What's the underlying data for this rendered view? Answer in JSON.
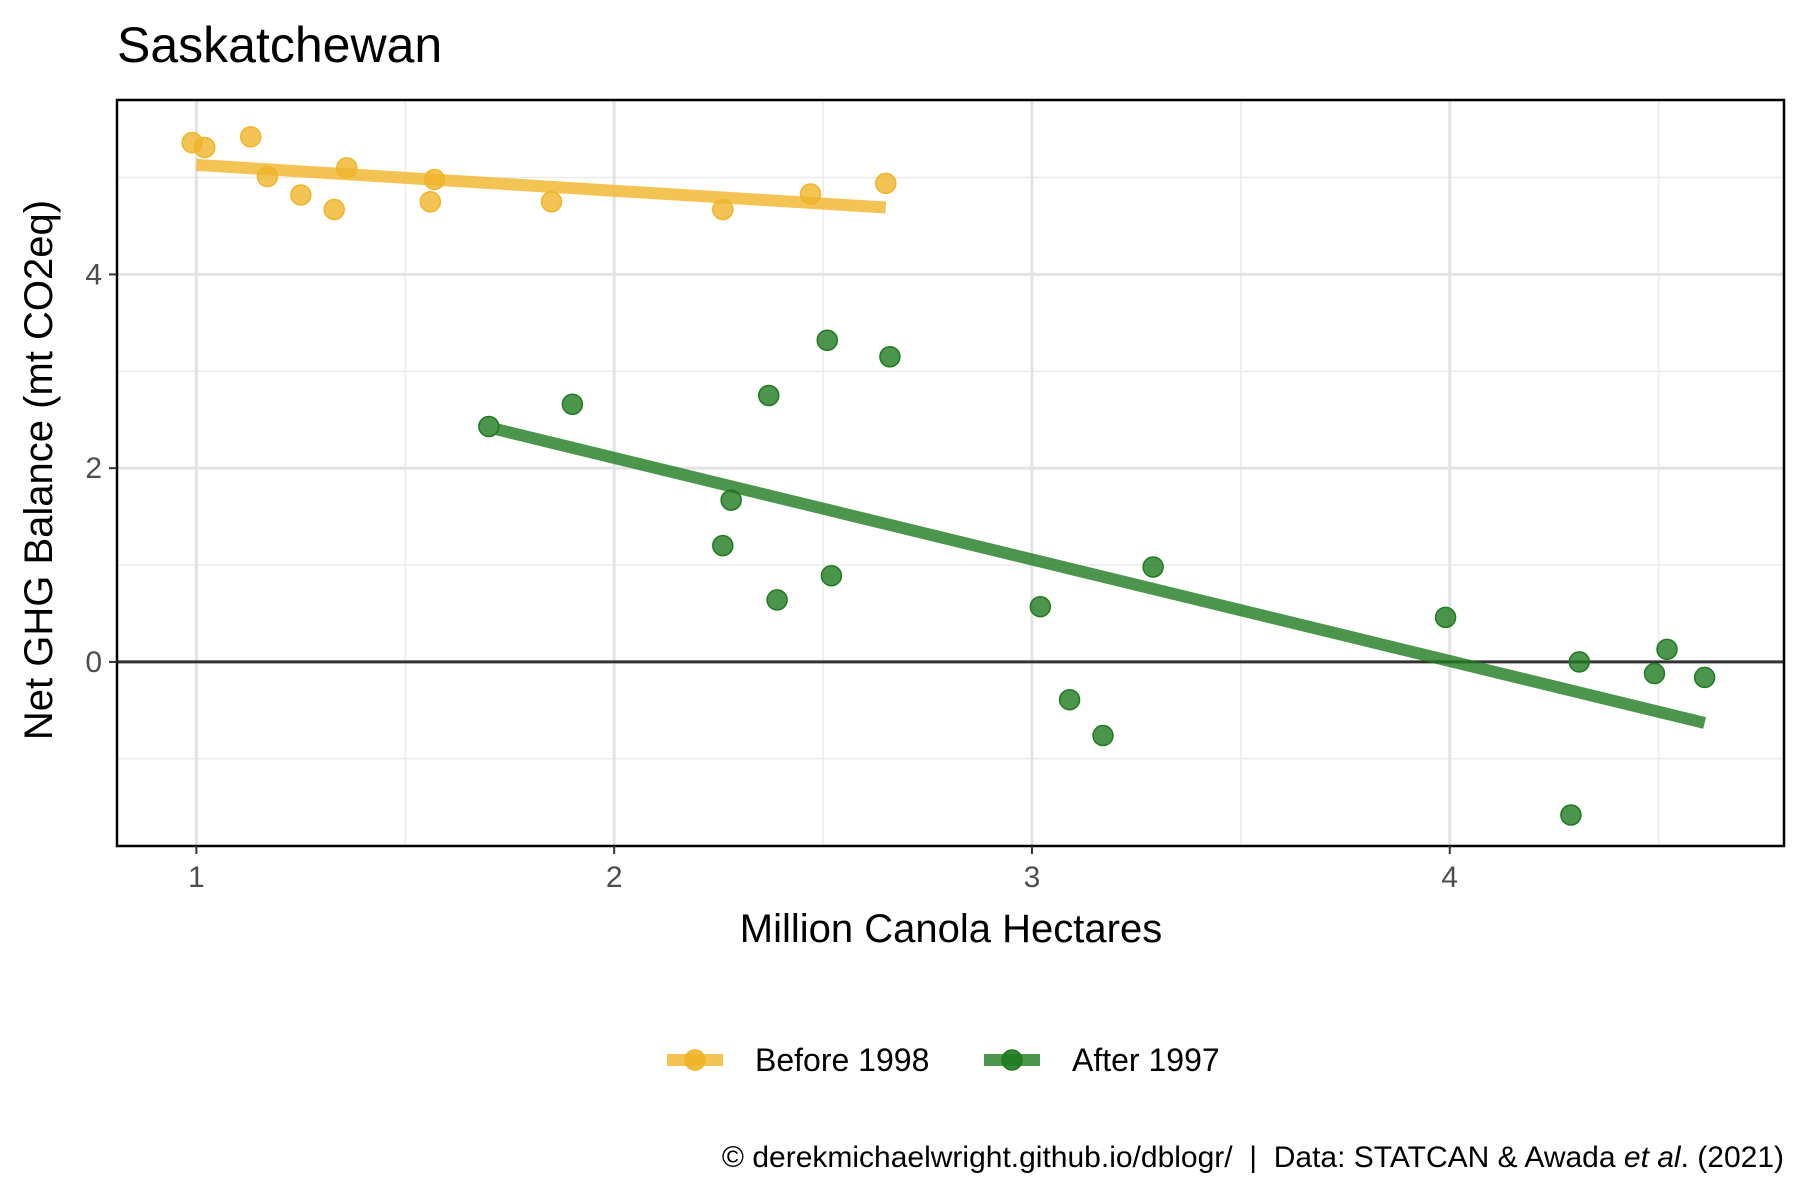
{
  "chart_data": {
    "type": "scatter",
    "title": "Saskatchewan",
    "xlabel": "Million Canola Hectares",
    "ylabel": "Net GHG Balance (mt CO2eq)",
    "xlim": [
      0.81,
      4.8
    ],
    "ylim": [
      -1.9,
      5.8
    ],
    "x_ticks": [
      1,
      2,
      3,
      4
    ],
    "y_ticks": [
      0,
      2,
      4
    ],
    "grid": true,
    "legend_position": "bottom",
    "reference_line_y": 0,
    "series": [
      {
        "name": "Before 1998",
        "color": "#f0b429",
        "points": [
          [
            0.99,
            5.36
          ],
          [
            1.02,
            5.31
          ],
          [
            1.13,
            5.42
          ],
          [
            1.17,
            5.01
          ],
          [
            1.25,
            4.82
          ],
          [
            1.33,
            4.67
          ],
          [
            1.36,
            5.1
          ],
          [
            1.56,
            4.75
          ],
          [
            1.57,
            4.98
          ],
          [
            1.85,
            4.75
          ],
          [
            2.26,
            4.67
          ],
          [
            2.47,
            4.83
          ],
          [
            2.65,
            4.94
          ]
        ],
        "trend": [
          [
            1.0,
            5.13
          ],
          [
            2.65,
            4.69
          ]
        ]
      },
      {
        "name": "After 1997",
        "color": "#1f7a1f",
        "points": [
          [
            1.7,
            2.43
          ],
          [
            1.9,
            2.66
          ],
          [
            2.26,
            1.2
          ],
          [
            2.28,
            1.67
          ],
          [
            2.37,
            2.75
          ],
          [
            2.39,
            0.64
          ],
          [
            2.51,
            3.32
          ],
          [
            2.52,
            0.89
          ],
          [
            2.66,
            3.15
          ],
          [
            3.02,
            0.57
          ],
          [
            3.09,
            -0.39
          ],
          [
            3.17,
            -0.76
          ],
          [
            3.29,
            0.98
          ],
          [
            3.99,
            0.46
          ],
          [
            4.29,
            -1.58
          ],
          [
            4.31,
            0.0
          ],
          [
            4.49,
            -0.12
          ],
          [
            4.52,
            0.13
          ],
          [
            4.61,
            -0.16
          ]
        ],
        "trend": [
          [
            1.72,
            2.4
          ],
          [
            4.61,
            -0.63
          ]
        ]
      }
    ]
  },
  "caption": {
    "prefix": "© derekmichaelwright.github.io/dblogr/  |  Data: STATCAN & Awada ",
    "italic": "et al",
    "suffix": ". (2021)"
  }
}
